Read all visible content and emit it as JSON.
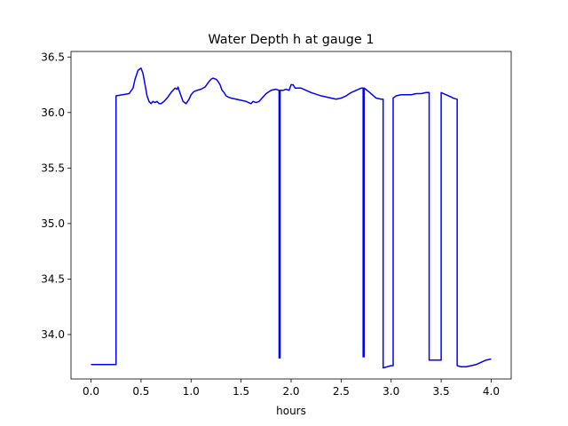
{
  "chart_data": {
    "type": "line",
    "title": "Water Depth h at gauge 1",
    "xlabel": "hours",
    "ylabel": "",
    "xlim": [
      -0.2,
      4.2
    ],
    "ylim": [
      33.6,
      36.55
    ],
    "xticks": [
      0.0,
      0.5,
      1.0,
      1.5,
      2.0,
      2.5,
      3.0,
      3.5,
      4.0
    ],
    "xtick_labels": [
      "0.0",
      "0.5",
      "1.0",
      "1.5",
      "2.0",
      "2.5",
      "3.0",
      "3.5",
      "4.0"
    ],
    "yticks": [
      34.0,
      34.5,
      35.0,
      35.5,
      36.0,
      36.5
    ],
    "ytick_labels": [
      "34.0",
      "34.5",
      "35.0",
      "35.5",
      "36.0",
      "36.5"
    ],
    "grid": false,
    "series": [
      {
        "color": "#0000ff",
        "x": [
          0.0,
          0.25,
          0.25,
          0.38,
          0.42,
          0.44,
          0.47,
          0.5,
          0.52,
          0.54,
          0.56,
          0.58,
          0.6,
          0.62,
          0.64,
          0.66,
          0.68,
          0.7,
          0.73,
          0.76,
          0.8,
          0.84,
          0.86,
          0.87,
          0.88,
          0.9,
          0.92,
          0.95,
          0.98,
          1.0,
          1.03,
          1.06,
          1.1,
          1.14,
          1.18,
          1.2,
          1.22,
          1.25,
          1.27,
          1.29,
          1.31,
          1.33,
          1.35,
          1.37,
          1.4,
          1.45,
          1.5,
          1.55,
          1.6,
          1.62,
          1.65,
          1.68,
          1.7,
          1.75,
          1.8,
          1.85,
          1.88,
          1.88,
          1.89,
          1.89,
          1.92,
          1.95,
          1.98,
          2.0,
          2.02,
          2.04,
          2.1,
          2.15,
          2.2,
          2.3,
          2.4,
          2.45,
          2.5,
          2.55,
          2.6,
          2.65,
          2.7,
          2.72,
          2.72,
          2.73,
          2.73,
          2.76,
          2.8,
          2.85,
          2.9,
          2.92,
          2.92,
          3.0,
          3.02,
          3.02,
          3.05,
          3.1,
          3.15,
          3.2,
          3.25,
          3.3,
          3.35,
          3.38,
          3.38,
          3.4,
          3.45,
          3.5,
          3.5,
          3.55,
          3.6,
          3.62,
          3.66,
          3.66,
          3.7,
          3.75,
          3.8,
          3.85,
          3.9,
          3.95,
          4.0
        ],
        "y": [
          33.73,
          33.73,
          36.15,
          36.17,
          36.22,
          36.3,
          36.38,
          36.4,
          36.35,
          36.25,
          36.15,
          36.1,
          36.08,
          36.1,
          36.09,
          36.1,
          36.08,
          36.08,
          36.1,
          36.13,
          36.18,
          36.22,
          36.21,
          36.23,
          36.2,
          36.15,
          36.1,
          36.08,
          36.12,
          36.16,
          36.19,
          36.2,
          36.21,
          36.23,
          36.28,
          36.3,
          36.31,
          36.3,
          36.28,
          36.25,
          36.2,
          36.18,
          36.15,
          36.14,
          36.13,
          36.12,
          36.11,
          36.1,
          36.08,
          36.1,
          36.09,
          36.1,
          36.12,
          36.17,
          36.2,
          36.21,
          36.2,
          33.79,
          33.79,
          36.2,
          36.2,
          36.21,
          36.2,
          36.25,
          36.25,
          36.22,
          36.22,
          36.2,
          36.18,
          36.15,
          36.13,
          36.12,
          36.13,
          36.15,
          36.18,
          36.2,
          36.22,
          36.22,
          33.8,
          33.8,
          36.22,
          36.2,
          36.17,
          36.13,
          36.12,
          36.12,
          33.7,
          33.72,
          33.72,
          36.13,
          36.15,
          36.16,
          36.16,
          36.16,
          36.17,
          36.17,
          36.18,
          36.18,
          33.77,
          33.77,
          33.77,
          33.77,
          36.18,
          36.16,
          36.14,
          36.13,
          36.12,
          33.72,
          33.71,
          33.71,
          33.72,
          33.73,
          33.75,
          33.77,
          33.78
        ]
      }
    ]
  }
}
